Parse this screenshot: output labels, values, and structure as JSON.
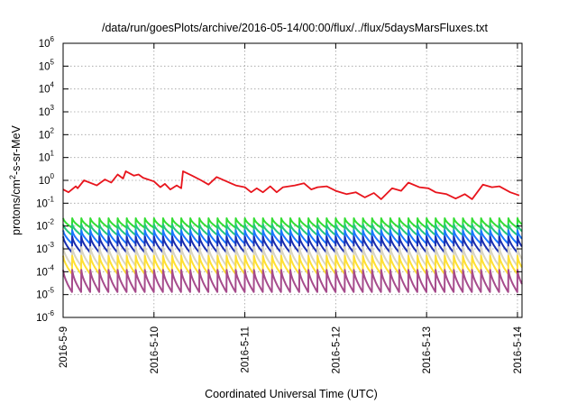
{
  "chart_data": {
    "type": "line",
    "title": "/data/run/goesPlots/archive/2016-05-14/00:00/flux/../flux/5daysMarsFluxes.txt",
    "xlabel": "Coordinated Universal Time (UTC)",
    "ylabel_parts": [
      "protons/cm",
      "2",
      "-s-sr-MeV"
    ],
    "x_ticks": [
      "2016-5-9",
      "2016-5-10",
      "2016-5-11",
      "2016-5-12",
      "2016-5-13",
      "2016-5-14"
    ],
    "x_range_days": [
      0,
      5.05
    ],
    "y_scale": "log",
    "ylim": [
      1e-06,
      1000000.0
    ],
    "y_ticks": [
      {
        "base": "10",
        "exp": "6"
      },
      {
        "base": "10",
        "exp": "5"
      },
      {
        "base": "10",
        "exp": "4"
      },
      {
        "base": "10",
        "exp": "3"
      },
      {
        "base": "10",
        "exp": "2"
      },
      {
        "base": "10",
        "exp": "1"
      },
      {
        "base": "10",
        "exp": "0"
      },
      {
        "base": "10",
        "exp": "-1"
      },
      {
        "base": "10",
        "exp": "-2"
      },
      {
        "base": "10",
        "exp": "-3"
      },
      {
        "base": "10",
        "exp": "-4"
      },
      {
        "base": "10",
        "exp": "-5"
      },
      {
        "base": "10",
        "exp": "-6"
      }
    ],
    "grid": true,
    "sawtooth_period_days": 0.1,
    "series": [
      {
        "color": "#e8141c",
        "style": "top",
        "anchors": [
          [
            0,
            0.4
          ],
          [
            0.06,
            0.3
          ],
          [
            0.14,
            0.55
          ],
          [
            0.16,
            0.45
          ],
          [
            0.23,
            1.0
          ],
          [
            0.37,
            0.6
          ],
          [
            0.46,
            1.1
          ],
          [
            0.53,
            0.8
          ],
          [
            0.6,
            1.8
          ],
          [
            0.66,
            1.2
          ],
          [
            0.69,
            2.5
          ],
          [
            0.78,
            1.6
          ],
          [
            0.83,
            1.8
          ],
          [
            0.88,
            1.3
          ],
          [
            1.0,
            0.9
          ],
          [
            1.07,
            0.5
          ],
          [
            1.12,
            0.7
          ],
          [
            1.18,
            0.4
          ],
          [
            1.25,
            0.6
          ],
          [
            1.3,
            0.45
          ],
          [
            1.32,
            2.5
          ],
          [
            1.42,
            1.6
          ],
          [
            1.52,
            1.0
          ],
          [
            1.6,
            0.65
          ],
          [
            1.69,
            1.4
          ],
          [
            1.8,
            0.9
          ],
          [
            1.9,
            0.6
          ],
          [
            2.0,
            0.5
          ],
          [
            2.07,
            0.3
          ],
          [
            2.13,
            0.45
          ],
          [
            2.2,
            0.3
          ],
          [
            2.28,
            0.55
          ],
          [
            2.35,
            0.3
          ],
          [
            2.42,
            0.5
          ],
          [
            2.55,
            0.6
          ],
          [
            2.65,
            0.75
          ],
          [
            2.73,
            0.4
          ],
          [
            2.8,
            0.5
          ],
          [
            2.9,
            0.55
          ],
          [
            3.0,
            0.35
          ],
          [
            3.12,
            0.25
          ],
          [
            3.22,
            0.3
          ],
          [
            3.32,
            0.18
          ],
          [
            3.42,
            0.28
          ],
          [
            3.5,
            0.15
          ],
          [
            3.62,
            0.45
          ],
          [
            3.72,
            0.35
          ],
          [
            3.8,
            0.8
          ],
          [
            3.92,
            0.5
          ],
          [
            4.02,
            0.45
          ],
          [
            4.1,
            0.3
          ],
          [
            4.22,
            0.25
          ],
          [
            4.32,
            0.16
          ],
          [
            4.42,
            0.25
          ],
          [
            4.5,
            0.15
          ],
          [
            4.62,
            0.65
          ],
          [
            4.72,
            0.5
          ],
          [
            4.8,
            0.55
          ],
          [
            4.92,
            0.3
          ],
          [
            5.02,
            0.22
          ]
        ]
      },
      {
        "color": "#33dd33",
        "peak": 0.022,
        "low": 0.0085
      },
      {
        "color": "#22c77a",
        "peak": 0.012,
        "low": 0.004
      },
      {
        "color": "#1a78ff",
        "peak": 0.0065,
        "low": 0.0017
      },
      {
        "color": "#1a2fb0",
        "peak": 0.0035,
        "low": 0.0007
      },
      {
        "color": "#d8d4c2",
        "peak": 0.0012,
        "low": 0.00018
      },
      {
        "color": "#ffe033",
        "peak": 0.0005,
        "low": 8e-05
      },
      {
        "color": "#a64b8c",
        "peak": 0.00012,
        "low": 1.3e-05
      }
    ]
  }
}
